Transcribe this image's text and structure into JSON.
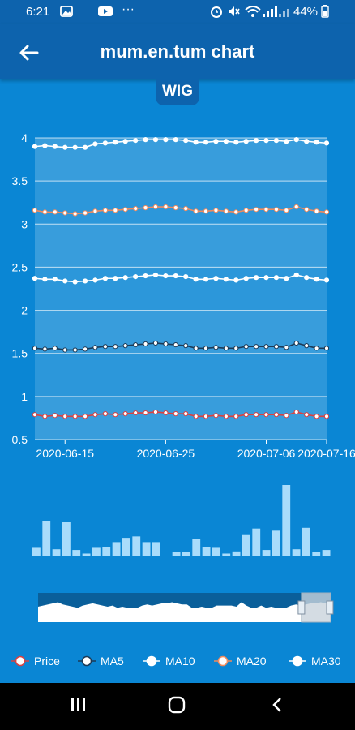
{
  "status": {
    "time": "6:21",
    "battery": "44%"
  },
  "appbar": {
    "title": "mum.en.tum chart"
  },
  "symbol": "WIG",
  "legend": [
    {
      "label": "Price",
      "color": "#d94040"
    },
    {
      "label": "MA5",
      "color": "#1b3a57"
    },
    {
      "label": "MA10",
      "color": "#ffffff"
    },
    {
      "label": "MA20",
      "color": "#f08a5d"
    },
    {
      "label": "MA30",
      "color": "#ffffff"
    }
  ],
  "chart_data": {
    "type": "line",
    "ylim": [
      0.5,
      4
    ],
    "yticks": [
      "4",
      "3.5",
      "3",
      "2.5",
      "2",
      "1.5",
      "1",
      "0.5"
    ],
    "xticks": [
      "2020-06-15",
      "2020-06-25",
      "2020-07-06",
      "2020-07-16"
    ],
    "x_count": 30,
    "series": [
      {
        "name": "MA30",
        "color": "#ffffff",
        "values": [
          3.9,
          3.91,
          3.9,
          3.89,
          3.89,
          3.89,
          3.93,
          3.94,
          3.95,
          3.96,
          3.97,
          3.98,
          3.98,
          3.98,
          3.98,
          3.97,
          3.95,
          3.95,
          3.96,
          3.96,
          3.95,
          3.96,
          3.97,
          3.97,
          3.97,
          3.96,
          3.98,
          3.96,
          3.95,
          3.94
        ]
      },
      {
        "name": "MA20",
        "color": "#f08a5d",
        "values": [
          3.16,
          3.14,
          3.14,
          3.13,
          3.12,
          3.13,
          3.15,
          3.16,
          3.16,
          3.17,
          3.18,
          3.19,
          3.2,
          3.2,
          3.19,
          3.18,
          3.15,
          3.15,
          3.16,
          3.15,
          3.14,
          3.16,
          3.17,
          3.17,
          3.17,
          3.16,
          3.2,
          3.17,
          3.15,
          3.14
        ]
      },
      {
        "name": "MA10",
        "color": "#ffffff",
        "values": [
          2.37,
          2.36,
          2.36,
          2.34,
          2.33,
          2.34,
          2.35,
          2.37,
          2.37,
          2.38,
          2.39,
          2.4,
          2.41,
          2.4,
          2.4,
          2.39,
          2.36,
          2.36,
          2.37,
          2.36,
          2.35,
          2.37,
          2.38,
          2.38,
          2.38,
          2.37,
          2.41,
          2.38,
          2.36,
          2.35
        ]
      },
      {
        "name": "MA5",
        "color": "#1b3a57",
        "values": [
          1.56,
          1.55,
          1.56,
          1.54,
          1.54,
          1.55,
          1.57,
          1.58,
          1.58,
          1.59,
          1.6,
          1.61,
          1.62,
          1.61,
          1.6,
          1.59,
          1.56,
          1.56,
          1.57,
          1.56,
          1.56,
          1.58,
          1.58,
          1.58,
          1.58,
          1.57,
          1.62,
          1.59,
          1.56,
          1.56
        ]
      },
      {
        "name": "Price",
        "color": "#d94040",
        "values": [
          0.79,
          0.77,
          0.78,
          0.77,
          0.77,
          0.77,
          0.79,
          0.8,
          0.79,
          0.8,
          0.81,
          0.81,
          0.82,
          0.81,
          0.8,
          0.8,
          0.77,
          0.77,
          0.78,
          0.77,
          0.77,
          0.79,
          0.79,
          0.79,
          0.79,
          0.78,
          0.82,
          0.79,
          0.77,
          0.77
        ]
      }
    ],
    "volume": [
      0.12,
      0.5,
      0.1,
      0.48,
      0.09,
      0.04,
      0.12,
      0.13,
      0.2,
      0.26,
      0.28,
      0.2,
      0.2,
      0,
      0.06,
      0.06,
      0.24,
      0.13,
      0.12,
      0.04,
      0.07,
      0.31,
      0.39,
      0.09,
      0.36,
      1.0,
      0.1,
      0.4,
      0.06,
      0.09
    ],
    "navigator": {
      "selected_range": [
        0.9,
        1.0
      ]
    }
  }
}
